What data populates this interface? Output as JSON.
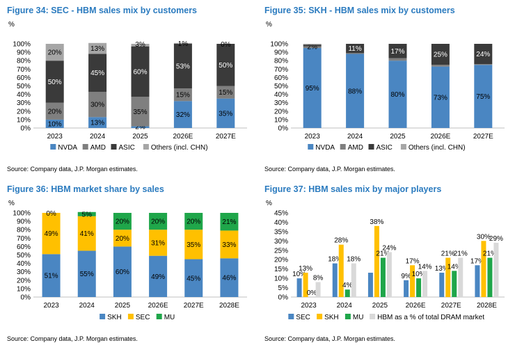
{
  "colors": {
    "title": "#2b7bbf",
    "NVDA": "#4a86c2",
    "AMD": "#7f7f7f",
    "ASIC": "#3a3a3a",
    "Others": "#a6a6a6",
    "SKH": "#4a86c2",
    "SEC": "#ffc000",
    "MU": "#1fa64a",
    "HBM": "#d9d9d9"
  },
  "figures": [
    {
      "title": "Figure 34: SEC - HBM sales mix by customers",
      "unit": "%",
      "source": "Source: Company data, J.P. Morgan estimates."
    },
    {
      "title": "Figure 35: SKH - HBM sales mix by customers",
      "unit": "%",
      "source": "Source: Company data, J.P. Morgan estimates."
    },
    {
      "title": "Figure 36: HBM market share by sales",
      "unit": "%",
      "source": "Source: Company data, J.P. Morgan estimates."
    },
    {
      "title": "Figure 37: HBM sales mix by major players",
      "unit": "%",
      "source": "Source: Company data, J.P. Morgan estimates."
    }
  ],
  "chart_data": [
    {
      "type": "bar",
      "stacked": true,
      "title": "Figure 34: SEC - HBM sales mix by customers",
      "ylabel": "%",
      "ylim": [
        0,
        100
      ],
      "yticks": [
        "0%",
        "10%",
        "20%",
        "30%",
        "40%",
        "50%",
        "60%",
        "70%",
        "80%",
        "90%",
        "100%"
      ],
      "categories": [
        "2023",
        "2024",
        "2025",
        "2026E",
        "2027E"
      ],
      "legend_position": "bottom",
      "series": [
        {
          "name": "NVDA",
          "color": "#4a86c2",
          "values": [
            10,
            13,
            2,
            32,
            35
          ],
          "labels": [
            "10%",
            "13%",
            "2%",
            "32%",
            "35%"
          ]
        },
        {
          "name": "AMD",
          "color": "#7f7f7f",
          "values": [
            20,
            30,
            35,
            15,
            15
          ],
          "labels": [
            "20%",
            "30%",
            "35%",
            "15%",
            "15%"
          ]
        },
        {
          "name": "ASIC",
          "color": "#3a3a3a",
          "values": [
            50,
            45,
            60,
            53,
            50
          ],
          "labels": [
            "50%",
            "45%",
            "60%",
            "53%",
            "50%"
          ]
        },
        {
          "name": "Others (incl. CHN)",
          "color": "#a6a6a6",
          "values": [
            20,
            13,
            3,
            1,
            0
          ],
          "labels": [
            "20%",
            "13%",
            "3%",
            "1%",
            "0%"
          ]
        }
      ]
    },
    {
      "type": "bar",
      "stacked": true,
      "title": "Figure 35: SKH - HBM sales mix by customers",
      "ylabel": "%",
      "ylim": [
        0,
        100
      ],
      "yticks": [
        "0%",
        "10%",
        "20%",
        "30%",
        "40%",
        "50%",
        "60%",
        "70%",
        "80%",
        "90%",
        "100%"
      ],
      "categories": [
        "2023",
        "2024",
        "2025",
        "2026E",
        "2027E"
      ],
      "legend_position": "bottom",
      "series": [
        {
          "name": "NVDA",
          "color": "#4a86c2",
          "values": [
            95,
            88,
            80,
            73,
            75
          ],
          "labels": [
            "95%",
            "88%",
            "80%",
            "73%",
            "75%"
          ]
        },
        {
          "name": "AMD",
          "color": "#7f7f7f",
          "values": [
            2,
            1,
            3,
            2,
            1
          ],
          "labels": [
            "2%",
            "",
            "",
            "",
            ""
          ]
        },
        {
          "name": "ASIC",
          "color": "#3a3a3a",
          "values": [
            2,
            11,
            17,
            25,
            24
          ],
          "labels": [
            "",
            "11%",
            "17%",
            "25%",
            "24%"
          ]
        },
        {
          "name": "Others (incl. CHN)",
          "color": "#a6a6a6",
          "values": [
            1,
            0,
            0,
            0,
            0
          ],
          "labels": [
            "",
            "",
            "",
            "",
            ""
          ]
        }
      ]
    },
    {
      "type": "bar",
      "stacked": true,
      "title": "Figure 36: HBM market share by sales",
      "ylabel": "%",
      "ylim": [
        0,
        100
      ],
      "yticks": [
        "0%",
        "10%",
        "20%",
        "30%",
        "40%",
        "50%",
        "60%",
        "70%",
        "80%",
        "90%",
        "100%"
      ],
      "categories": [
        "2023",
        "2024",
        "2025",
        "2026E",
        "2027E",
        "2028E"
      ],
      "legend_position": "bottom",
      "series": [
        {
          "name": "SKH",
          "color": "#4a86c2",
          "values": [
            51,
            55,
            60,
            49,
            45,
            46
          ],
          "labels": [
            "51%",
            "55%",
            "60%",
            "49%",
            "45%",
            "46%"
          ]
        },
        {
          "name": "SEC",
          "color": "#ffc000",
          "values": [
            49,
            41,
            20,
            31,
            35,
            33
          ],
          "labels": [
            "49%",
            "41%",
            "20%",
            "31%",
            "35%",
            "33%"
          ]
        },
        {
          "name": "MU",
          "color": "#1fa64a",
          "values": [
            0,
            5,
            20,
            20,
            20,
            21
          ],
          "labels": [
            "0%",
            "5%",
            "20%",
            "20%",
            "20%",
            "21%"
          ]
        }
      ]
    },
    {
      "type": "bar",
      "stacked": false,
      "title": "Figure 37: HBM sales mix by major players",
      "ylabel": "%",
      "ylim": [
        0,
        45
      ],
      "yticks": [
        "0%",
        "5%",
        "10%",
        "15%",
        "20%",
        "25%",
        "30%",
        "35%",
        "40%",
        "45%"
      ],
      "categories": [
        "2023",
        "2024",
        "2025",
        "2026E",
        "2027E",
        "2028E"
      ],
      "legend_position": "bottom",
      "series": [
        {
          "name": "SEC",
          "color": "#4a86c2",
          "values": [
            10,
            18,
            13,
            9,
            13,
            17
          ],
          "labels": [
            "10%",
            "18%",
            "",
            "9%",
            "13%",
            "17%"
          ]
        },
        {
          "name": "SKH",
          "color": "#ffc000",
          "values": [
            13,
            28,
            38,
            17,
            21,
            30
          ],
          "labels": [
            "13%",
            "28%",
            "38%",
            "17%",
            "21%",
            "30%"
          ]
        },
        {
          "name": "MU",
          "color": "#1fa64a",
          "values": [
            0,
            4,
            21,
            10,
            14,
            21
          ],
          "labels": [
            "0%",
            "4%",
            "21%",
            "10%",
            "14%",
            "21%"
          ]
        },
        {
          "name": "HBM as a % of total DRAM market",
          "color": "#d9d9d9",
          "values": [
            8,
            18,
            24,
            14,
            21,
            29
          ],
          "labels": [
            "8%",
            "18%",
            "24%",
            "14%",
            "21%",
            "29%"
          ]
        }
      ]
    }
  ]
}
